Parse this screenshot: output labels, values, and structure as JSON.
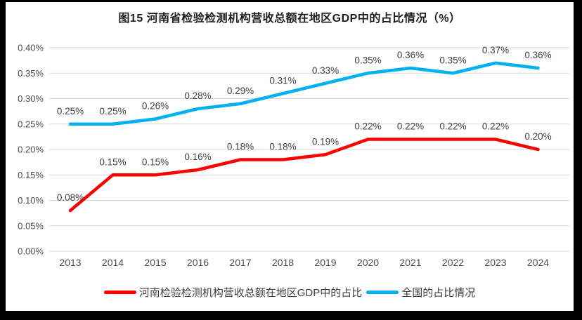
{
  "chart_data": {
    "type": "line",
    "title": "图15  河南省检验检测机构营收总额在地区GDP中的占比情况（%）",
    "categories": [
      "2013",
      "2014",
      "2015",
      "2016",
      "2017",
      "2018",
      "2019",
      "2020",
      "2021",
      "2022",
      "2023",
      "2024"
    ],
    "series": [
      {
        "name": "河南检验检测机构营收总额在地区GDP中的占比",
        "color": "#FF0000",
        "values": [
          0.08,
          0.15,
          0.15,
          0.16,
          0.18,
          0.18,
          0.19,
          0.22,
          0.22,
          0.22,
          0.22,
          0.2
        ],
        "labels": [
          "0.08%",
          "0.15%",
          "0.15%",
          "0.16%",
          "0.18%",
          "0.18%",
          "0.19%",
          "0.22%",
          "0.22%",
          "0.22%",
          "0.22%",
          "0.20%"
        ]
      },
      {
        "name": "全国的占比情况",
        "color": "#00B0F0",
        "values": [
          0.25,
          0.25,
          0.26,
          0.28,
          0.29,
          0.31,
          0.33,
          0.35,
          0.36,
          0.35,
          0.37,
          0.36
        ],
        "labels": [
          "0.25%",
          "0.25%",
          "0.26%",
          "0.28%",
          "0.29%",
          "0.31%",
          "0.33%",
          "0.35%",
          "0.36%",
          "0.35%",
          "0.37%",
          "0.36%"
        ]
      }
    ],
    "y_axis": {
      "min": 0,
      "max": 0.4,
      "tick_values": [
        0,
        0.05,
        0.1,
        0.15,
        0.2,
        0.25,
        0.3,
        0.35,
        0.4
      ],
      "tick_labels": [
        "0.00%",
        "0.05%",
        "0.10%",
        "0.15%",
        "0.20%",
        "0.25%",
        "0.30%",
        "0.35%",
        "0.40%"
      ]
    },
    "grid": true,
    "legend_position": "bottom",
    "colors": {
      "gridline": "#D9D9D9",
      "axis_label": "#4d4d4d",
      "data_label": "#404040",
      "title": "#1f1f1f",
      "frame_border": "#000000",
      "background": "#ffffff"
    }
  }
}
